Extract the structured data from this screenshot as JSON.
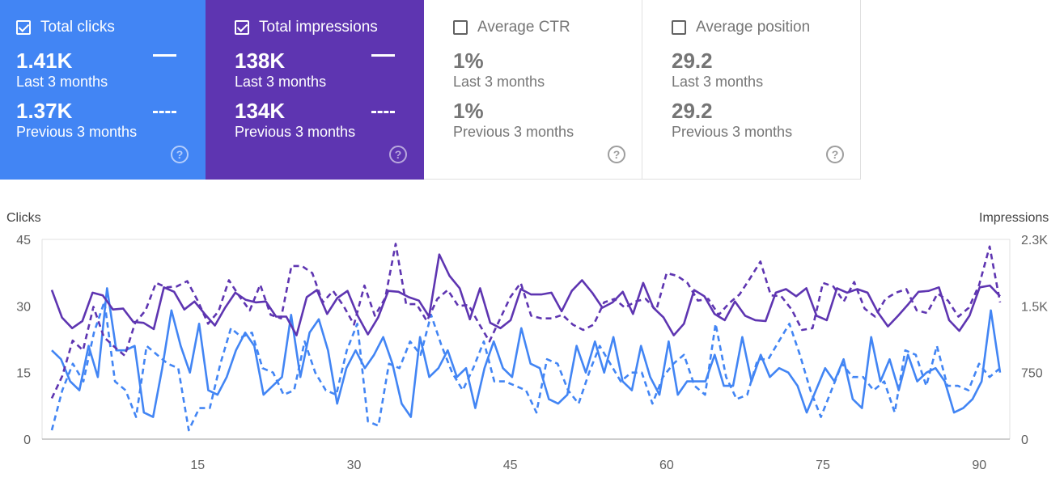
{
  "cards": [
    {
      "title": "Total clicks",
      "checked": true,
      "current_value": "1.41K",
      "current_label": "Last 3 months",
      "previous_value": "1.37K",
      "previous_label": "Previous 3 months",
      "help_icon": "help-circle-icon",
      "color": "#4285f4"
    },
    {
      "title": "Total impressions",
      "checked": true,
      "current_value": "138K",
      "current_label": "Last 3 months",
      "previous_value": "134K",
      "previous_label": "Previous 3 months",
      "help_icon": "help-circle-icon",
      "color": "#5e35b1"
    },
    {
      "title": "Average CTR",
      "checked": false,
      "current_value": "1%",
      "current_label": "Last 3 months",
      "previous_value": "1%",
      "previous_label": "Previous 3 months",
      "help_icon": "help-circle-icon"
    },
    {
      "title": "Average position",
      "checked": false,
      "current_value": "29.2",
      "current_label": "Last 3 months",
      "previous_value": "29.2",
      "previous_label": "Previous 3 months",
      "help_icon": "help-circle-icon"
    }
  ],
  "help_glyph": "?",
  "chart_data": {
    "type": "line",
    "ylabel_left": "Clicks",
    "ylabel_right": "Impressions",
    "left_ticks": [
      "0",
      "15",
      "30",
      "45"
    ],
    "right_ticks": [
      "0",
      "750",
      "1.5K",
      "2.3K"
    ],
    "ylim_left": [
      0,
      45
    ],
    "ylim_right": [
      0,
      2250
    ],
    "x_ticks": [
      "15",
      "30",
      "45",
      "60",
      "75",
      "90"
    ],
    "x_tick_values": [
      15,
      30,
      45,
      60,
      75,
      90
    ],
    "xlim": [
      1,
      92
    ],
    "grid": false,
    "series": [
      {
        "name": "Clicks · Last 3 months",
        "axis": "left",
        "style": "solid",
        "color": "#4285f4",
        "x_start": 1,
        "values": [
          20,
          18,
          13,
          11,
          21,
          14,
          34,
          20,
          20,
          21,
          6,
          5,
          16,
          29,
          21,
          15,
          26,
          11,
          10,
          14,
          20,
          24,
          21,
          10,
          12,
          14,
          28,
          14,
          24,
          27,
          20,
          8,
          16,
          20,
          16,
          19,
          23,
          17,
          8,
          5,
          23,
          14,
          16,
          20,
          14,
          16,
          7,
          16,
          22,
          16,
          14,
          25,
          17,
          16,
          9,
          8,
          10,
          21,
          15,
          22,
          15,
          23,
          13,
          11,
          21,
          14,
          10,
          22,
          10,
          13,
          13,
          13,
          19,
          12,
          12,
          23,
          13,
          19,
          14,
          16,
          15,
          12,
          6,
          11,
          16,
          13,
          18,
          9,
          7,
          23,
          13,
          18,
          11,
          19,
          13,
          15,
          16,
          13,
          6,
          7,
          9,
          13,
          29,
          15
        ]
      },
      {
        "name": "Clicks · Previous 3 months",
        "axis": "left",
        "style": "dashed",
        "color": "#4285f4",
        "x_start": 1,
        "values": [
          2,
          11,
          17,
          13,
          24,
          31,
          13,
          11,
          5,
          21,
          19,
          17,
          16,
          2,
          7,
          7,
          17,
          25,
          23,
          24,
          16,
          15,
          10,
          11,
          22,
          15,
          11,
          10,
          20,
          26,
          4,
          3,
          17,
          16,
          22,
          19,
          28,
          21,
          15,
          11,
          16,
          22,
          13,
          13,
          12,
          11,
          6,
          18,
          17,
          11,
          8,
          15,
          21,
          17,
          13,
          15,
          15,
          8,
          14,
          17,
          19,
          12,
          10,
          26,
          14,
          9,
          10,
          18,
          18,
          22,
          26,
          19,
          11,
          5,
          11,
          17,
          14,
          14,
          11,
          13,
          6,
          20,
          19,
          12,
          21,
          12,
          12,
          11,
          17,
          14,
          16
        ]
      },
      {
        "name": "Impressions · Last 3 months",
        "axis": "right",
        "style": "solid",
        "color": "#5e35b1",
        "x_start": 1,
        "values": [
          1680,
          1370,
          1250,
          1330,
          1650,
          1620,
          1460,
          1470,
          1320,
          1310,
          1240,
          1710,
          1660,
          1460,
          1550,
          1410,
          1280,
          1480,
          1650,
          1570,
          1540,
          1550,
          1380,
          1380,
          1170,
          1600,
          1680,
          1410,
          1590,
          1670,
          1390,
          1180,
          1370,
          1670,
          1660,
          1600,
          1560,
          1380,
          2080,
          1840,
          1700,
          1350,
          1700,
          1310,
          1250,
          1340,
          1690,
          1630,
          1630,
          1650,
          1440,
          1670,
          1790,
          1650,
          1480,
          1540,
          1660,
          1410,
          1760,
          1480,
          1370,
          1170,
          1300,
          1680,
          1610,
          1410,
          1340,
          1550,
          1390,
          1340,
          1330,
          1650,
          1690,
          1610,
          1700,
          1390,
          1340,
          1700,
          1650,
          1690,
          1650,
          1430,
          1270,
          1390,
          1520,
          1660,
          1670,
          1710,
          1340,
          1220,
          1390,
          1710,
          1730,
          1610
        ]
      },
      {
        "name": "Impressions · Previous 3 months",
        "axis": "right",
        "style": "dashed",
        "color": "#5e35b1",
        "x_start": 1,
        "values": [
          460,
          710,
          1110,
          1000,
          1490,
          1150,
          1040,
          940,
          1310,
          1450,
          1760,
          1710,
          1720,
          1780,
          1560,
          1300,
          1440,
          1790,
          1610,
          1450,
          1740,
          1400,
          1360,
          1950,
          1950,
          1870,
          1540,
          1670,
          1500,
          1290,
          1730,
          1390,
          1590,
          2200,
          1520,
          1520,
          1330,
          1580,
          1680,
          1500,
          1510,
          1300,
          1100,
          1350,
          1600,
          1760,
          1390,
          1360,
          1360,
          1400,
          1290,
          1230,
          1290,
          1540,
          1580,
          1480,
          1550,
          1580,
          1450,
          1870,
          1840,
          1760,
          1560,
          1580,
          1400,
          1530,
          1630,
          1810,
          2000,
          1620,
          1610,
          1460,
          1230,
          1250,
          1760,
          1720,
          1550,
          1770,
          1470,
          1380,
          1580,
          1650,
          1690,
          1450,
          1420,
          1640,
          1560,
          1380,
          1480,
          1740,
          2170,
          1540
        ]
      }
    ]
  }
}
